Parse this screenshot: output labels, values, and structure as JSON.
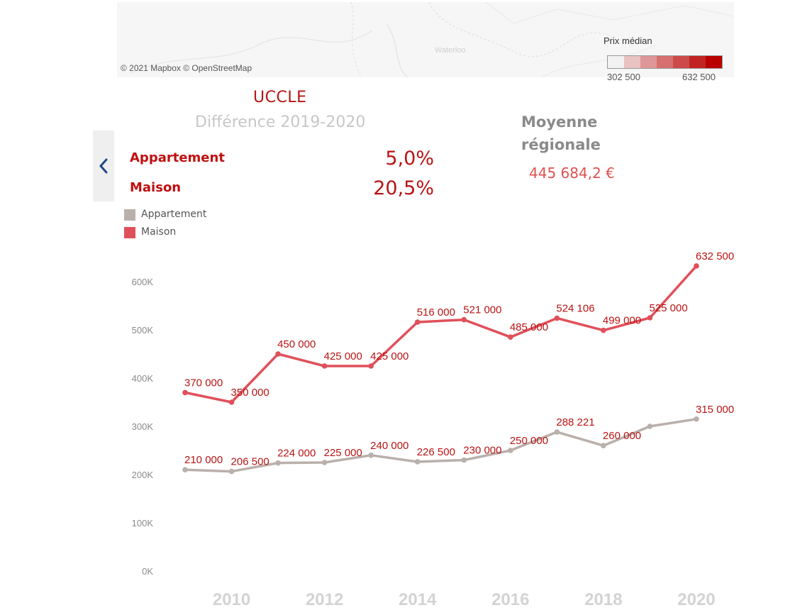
{
  "map": {
    "attribution": "© 2021 Mapbox  © OpenStreetMap",
    "place_label": "Waterloo",
    "legend_title": "Prix médian",
    "legend_min": "302 500",
    "legend_max": "632 500",
    "ramp_colors": [
      "#f2f2f2",
      "#e9c2c2",
      "#de9696",
      "#d67070",
      "#cd4a4a",
      "#c22424",
      "#b80000"
    ]
  },
  "header": {
    "commune": "UCCLE",
    "diff_title": "Différence 2019-2020"
  },
  "diff": {
    "rows": [
      {
        "label": "Appartement",
        "value": "5,0%"
      },
      {
        "label": "Maison",
        "value": "20,5%"
      }
    ]
  },
  "regional": {
    "label": "Moyenne régionale",
    "value": "445 684,2 €"
  },
  "legend": [
    {
      "name": "Appartement",
      "color": "#b9b0ab"
    },
    {
      "name": "Maison",
      "color": "#e0505a"
    }
  ],
  "chart_data": {
    "type": "line",
    "x": [
      2009,
      2010,
      2011,
      2012,
      2013,
      2014,
      2015,
      2016,
      2017,
      2018,
      2019,
      2020
    ],
    "x_tick_labels": [
      "2010",
      "2012",
      "2014",
      "2016",
      "2018",
      "2020"
    ],
    "y_tick_labels": [
      "0K",
      "100K",
      "200K",
      "300K",
      "400K",
      "500K",
      "600K"
    ],
    "ylim": [
      0,
      660000
    ],
    "series": [
      {
        "name": "Appartement",
        "color": "#b9b0ab",
        "values": [
          210000,
          206500,
          224000,
          225000,
          240000,
          226500,
          230000,
          250000,
          288221,
          260000,
          300000,
          315000
        ],
        "labels": [
          "210 000",
          "206 500",
          "224 000",
          "225 000",
          "240 000",
          "226 500",
          "230 000",
          "250 000",
          "288 221",
          "260 000",
          "",
          "315 000"
        ]
      },
      {
        "name": "Maison",
        "color": "#e0505a",
        "values": [
          370000,
          350000,
          450000,
          425000,
          425000,
          516000,
          521000,
          485000,
          524106,
          499000,
          525000,
          632500
        ],
        "labels": [
          "370 000",
          "350 000",
          "450 000",
          "425 000",
          "425 000",
          "516 000",
          "521 000",
          "485 000",
          "524 106",
          "499 000",
          "525 000",
          "632 500"
        ]
      }
    ],
    "label_color": "#b81414"
  }
}
